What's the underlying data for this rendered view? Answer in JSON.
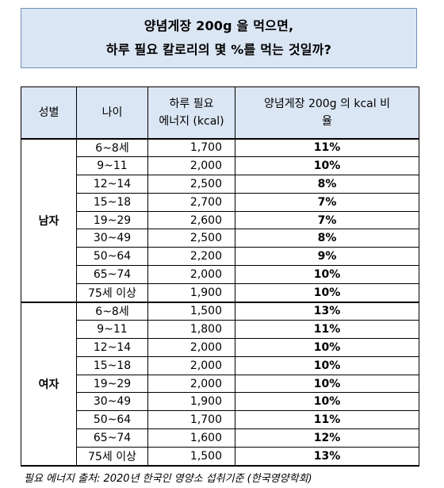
{
  "title": {
    "line1": "양념게장 200g 을 먹으면,",
    "line2": "하루 필요 칼로리의 몇 %를 먹는 것일까?"
  },
  "table": {
    "headers": {
      "gender": "성별",
      "age": "나이",
      "energy_line1": "하루 필요",
      "energy_line2": "에너지 (kcal)",
      "ratio_line1": "양념게장 200g 의 kcal 비",
      "ratio_line2": "율"
    },
    "groups": [
      {
        "gender": "남자",
        "rows": [
          {
            "age": "6~8세",
            "energy": "1,700",
            "ratio": "11%"
          },
          {
            "age": "9~11",
            "energy": "2,000",
            "ratio": "10%"
          },
          {
            "age": "12~14",
            "energy": "2,500",
            "ratio": "8%"
          },
          {
            "age": "15~18",
            "energy": "2,700",
            "ratio": "7%"
          },
          {
            "age": "19~29",
            "energy": "2,600",
            "ratio": "7%"
          },
          {
            "age": "30~49",
            "energy": "2,500",
            "ratio": "8%"
          },
          {
            "age": "50~64",
            "energy": "2,200",
            "ratio": "9%"
          },
          {
            "age": "65~74",
            "energy": "2,000",
            "ratio": "10%"
          },
          {
            "age": "75세 이상",
            "energy": "1,900",
            "ratio": "10%"
          }
        ]
      },
      {
        "gender": "여자",
        "rows": [
          {
            "age": "6~8세",
            "energy": "1,500",
            "ratio": "13%"
          },
          {
            "age": "9~11",
            "energy": "1,800",
            "ratio": "11%"
          },
          {
            "age": "12~14",
            "energy": "2,000",
            "ratio": "10%"
          },
          {
            "age": "15~18",
            "energy": "2,000",
            "ratio": "10%"
          },
          {
            "age": "19~29",
            "energy": "2,000",
            "ratio": "10%"
          },
          {
            "age": "30~49",
            "energy": "1,900",
            "ratio": "10%"
          },
          {
            "age": "50~64",
            "energy": "1,700",
            "ratio": "11%"
          },
          {
            "age": "65~74",
            "energy": "1,600",
            "ratio": "12%"
          },
          {
            "age": "75세 이상",
            "energy": "1,500",
            "ratio": "13%"
          }
        ]
      }
    ]
  },
  "source": "필요 에너지 출처: 2020년 한국인 영양소 섭취기준 (한국영양학회)",
  "colors": {
    "header_fill": "#dbe6f4",
    "title_border": "#6f8fb6"
  }
}
